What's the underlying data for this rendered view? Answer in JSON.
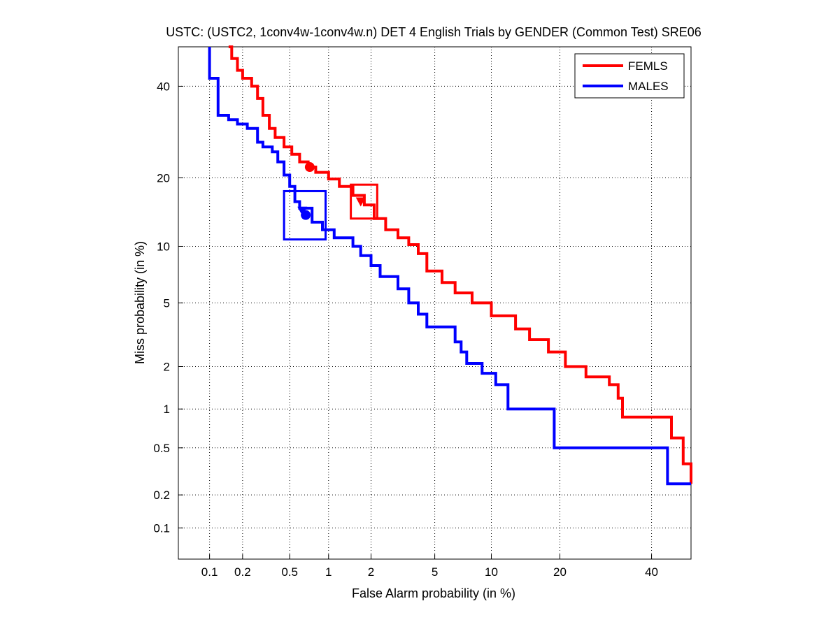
{
  "chart_data": {
    "type": "line",
    "title": "USTC: (USTC2, 1conv4w-1conv4w.n) DET 4 English Trials by GENDER (Common Test) SRE06",
    "xlabel": "False Alarm probability (in %)",
    "ylabel": "Miss probability (in %)",
    "x_scale": "normal-deviate",
    "y_scale": "normal-deviate",
    "xlim": [
      0.05,
      50
    ],
    "ylim": [
      0.05,
      50
    ],
    "x_ticks": [
      0.1,
      0.2,
      0.5,
      1,
      2,
      5,
      10,
      20,
      40
    ],
    "x_tick_labels": [
      "0.1",
      "0.2",
      "0.5",
      "1",
      "2",
      "5",
      "10",
      "20",
      "40"
    ],
    "y_ticks": [
      0.1,
      0.2,
      0.5,
      1,
      2,
      5,
      10,
      20,
      40
    ],
    "y_tick_labels": [
      "0.1",
      "0.2",
      "0.5",
      "1",
      "2",
      "5",
      "10",
      "20",
      "40"
    ],
    "grid": true,
    "legend_position": "top-right",
    "series": [
      {
        "name": "FEMLS",
        "color": "#ff0000",
        "points": [
          [
            0.15,
            50
          ],
          [
            0.16,
            47
          ],
          [
            0.18,
            44
          ],
          [
            0.2,
            42
          ],
          [
            0.24,
            40
          ],
          [
            0.27,
            37
          ],
          [
            0.3,
            33
          ],
          [
            0.34,
            30
          ],
          [
            0.38,
            28
          ],
          [
            0.45,
            26
          ],
          [
            0.52,
            24.5
          ],
          [
            0.6,
            23
          ],
          [
            0.7,
            22
          ],
          [
            0.8,
            21
          ],
          [
            1.0,
            19.8
          ],
          [
            1.2,
            18.5
          ],
          [
            1.5,
            17
          ],
          [
            1.8,
            15.5
          ],
          [
            2.1,
            13.5
          ],
          [
            2.5,
            12
          ],
          [
            3.0,
            11
          ],
          [
            3.5,
            10.2
          ],
          [
            4.0,
            9.2
          ],
          [
            4.5,
            7.5
          ],
          [
            5.5,
            6.5
          ],
          [
            6.5,
            5.7
          ],
          [
            8.0,
            5.0
          ],
          [
            10,
            4.2
          ],
          [
            13,
            3.5
          ],
          [
            15,
            3.0
          ],
          [
            18,
            2.5
          ],
          [
            21,
            2.0
          ],
          [
            25,
            1.7
          ],
          [
            30,
            1.5
          ],
          [
            32,
            1.2
          ],
          [
            33,
            0.87
          ],
          [
            40,
            0.87
          ],
          [
            45,
            0.6
          ],
          [
            48,
            0.37
          ],
          [
            50,
            0.25
          ]
        ]
      },
      {
        "name": "MALES",
        "color": "#0000ff",
        "points": [
          [
            0.1,
            50
          ],
          [
            0.1,
            42
          ],
          [
            0.12,
            40
          ],
          [
            0.12,
            33
          ],
          [
            0.15,
            32
          ],
          [
            0.18,
            31
          ],
          [
            0.22,
            30
          ],
          [
            0.27,
            27
          ],
          [
            0.3,
            26
          ],
          [
            0.36,
            25
          ],
          [
            0.4,
            23
          ],
          [
            0.45,
            20.5
          ],
          [
            0.5,
            18.5
          ],
          [
            0.55,
            16
          ],
          [
            0.6,
            15
          ],
          [
            0.75,
            13
          ],
          [
            0.9,
            12
          ],
          [
            1.1,
            11
          ],
          [
            1.5,
            10
          ],
          [
            1.7,
            9
          ],
          [
            2.0,
            8
          ],
          [
            2.3,
            7
          ],
          [
            3.0,
            6
          ],
          [
            3.5,
            5
          ],
          [
            4.0,
            4.3
          ],
          [
            4.5,
            3.6
          ],
          [
            6.5,
            3.6
          ],
          [
            6.5,
            2.9
          ],
          [
            7.0,
            2.5
          ],
          [
            7.5,
            2.1
          ],
          [
            9.0,
            1.8
          ],
          [
            10.5,
            1.5
          ],
          [
            12,
            1.5
          ],
          [
            12,
            1.0
          ],
          [
            18,
            1.0
          ],
          [
            19,
            0.5
          ],
          [
            43,
            0.5
          ],
          [
            44,
            0.25
          ],
          [
            50,
            0.25
          ]
        ]
      }
    ],
    "operating_points": [
      {
        "series": "FEMLS",
        "shape": "circle",
        "x": 0.72,
        "y": 22.0
      },
      {
        "series": "FEMLS",
        "shape": "triangle",
        "x": 1.7,
        "y": 16.0
      },
      {
        "series": "MALES",
        "shape": "circle",
        "x": 0.67,
        "y": 14.0
      },
      {
        "series": "MALES",
        "shape": "triangle",
        "x": 0.63,
        "y": 14.6
      }
    ],
    "confidence_boxes": [
      {
        "series": "FEMLS",
        "x_range": [
          1.45,
          2.2
        ],
        "y_range": [
          13.5,
          18.8
        ]
      },
      {
        "series": "MALES",
        "x_range": [
          0.45,
          0.95
        ],
        "y_range": [
          10.8,
          17.7
        ]
      }
    ]
  }
}
